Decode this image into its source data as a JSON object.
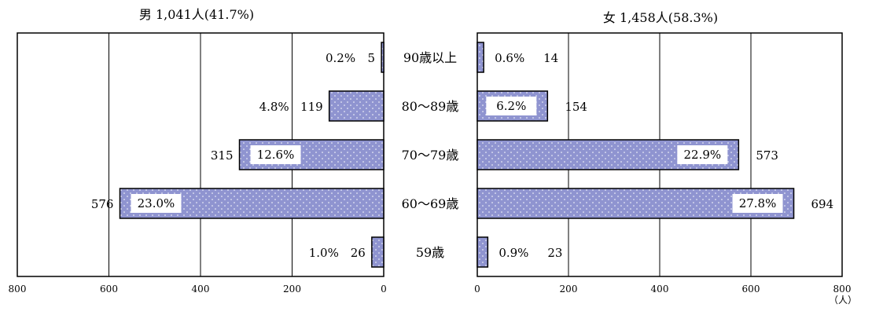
{
  "chart_data": [
    {
      "type": "bar",
      "orientation": "horizontal",
      "direction": "right-to-left",
      "title": "男 1,041人(41.7%)",
      "categories": [
        "90歳以上",
        "80～89歳",
        "70～79歳",
        "60～69歳",
        "59歳"
      ],
      "values": [
        5,
        119,
        315,
        576,
        26
      ],
      "percent_labels": [
        "0.2%",
        "4.8%",
        "12.6%",
        "23.0%",
        "1.0%"
      ],
      "xlim": [
        0,
        800
      ],
      "x_ticks": [
        "800",
        "600",
        "400",
        "200",
        "0"
      ],
      "grid": true
    },
    {
      "type": "bar",
      "orientation": "horizontal",
      "direction": "left-to-right",
      "title": "女 1,458人(58.3%)",
      "categories": [
        "90歳以上",
        "80～89歳",
        "70～79歳",
        "60～69歳",
        "59歳"
      ],
      "values": [
        14,
        154,
        573,
        694,
        23
      ],
      "percent_labels": [
        "0.6%",
        "6.2%",
        "22.9%",
        "27.8%",
        "0.9%"
      ],
      "xlim": [
        0,
        800
      ],
      "x_ticks": [
        "0",
        "200",
        "400",
        "600",
        "800"
      ],
      "grid": true,
      "unit_label": "（人）"
    }
  ],
  "colors": {
    "bar_fill": "#8f94d0",
    "dot": "#ffffff",
    "axis": "#000000"
  }
}
